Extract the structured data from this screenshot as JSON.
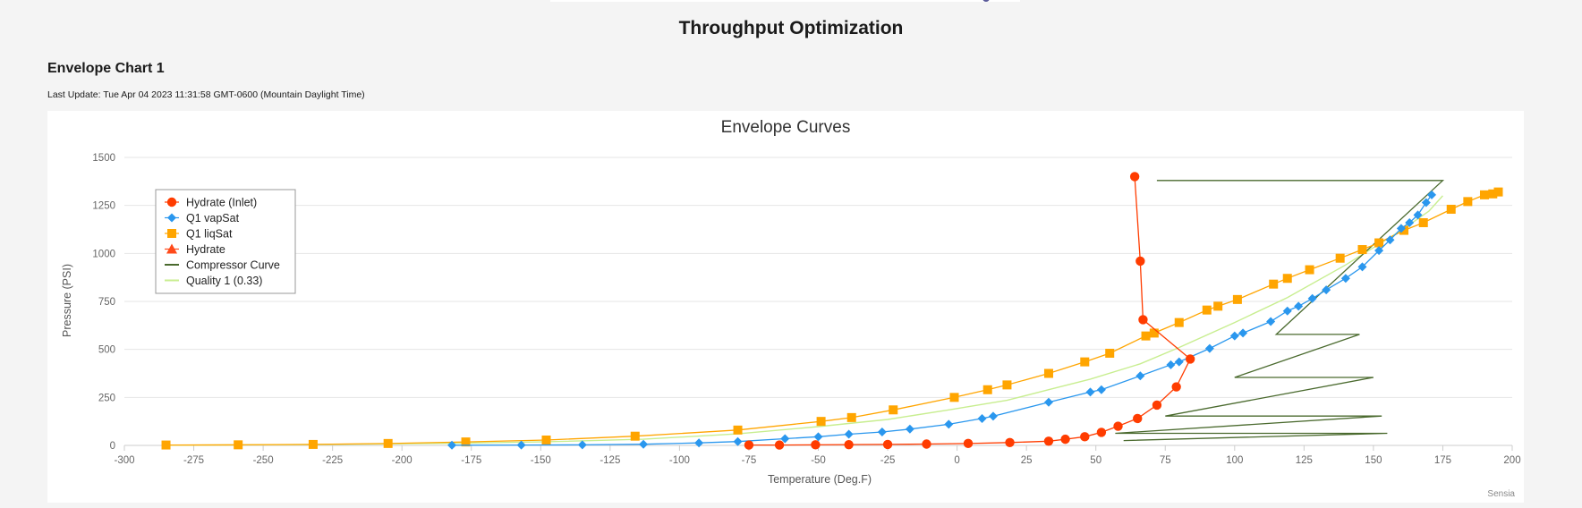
{
  "page": {
    "title": "Throughput Optimization",
    "section_title": "Envelope Chart 1",
    "last_update": "Last Update: Tue Apr 04 2023 11:31:58 GMT-0600 (Mountain Daylight Time)"
  },
  "chart_data": {
    "type": "line",
    "title": "Envelope Curves",
    "xlabel": "Temperature (Deg.F)",
    "ylabel": "Pressure (PSI)",
    "xlim": [
      -300,
      200
    ],
    "ylim": [
      0,
      1500
    ],
    "xticks": [
      -300,
      -275,
      -250,
      -225,
      -200,
      -175,
      -150,
      -125,
      -100,
      -75,
      -50,
      -25,
      0,
      25,
      50,
      75,
      100,
      125,
      150,
      175,
      200
    ],
    "yticks": [
      0,
      250,
      500,
      750,
      1000,
      1250,
      1500
    ],
    "grid": true,
    "legend_position": "top-left",
    "credits": "Sensia",
    "series": [
      {
        "name": "Hydrate (Inlet)",
        "color": "#ff3c00",
        "marker": "circle",
        "line": true,
        "points": [
          [
            64,
            1400
          ],
          [
            66,
            960
          ],
          [
            67,
            655
          ],
          [
            84,
            450
          ],
          [
            79,
            305
          ],
          [
            72,
            210
          ],
          [
            65,
            140
          ],
          [
            58,
            100
          ],
          [
            52,
            68
          ],
          [
            46,
            45
          ],
          [
            39,
            32
          ],
          [
            33,
            22
          ],
          [
            19,
            15
          ],
          [
            4,
            10
          ],
          [
            -11,
            7
          ],
          [
            -25,
            5
          ],
          [
            -39,
            4
          ],
          [
            -51,
            3
          ],
          [
            -64,
            2
          ],
          [
            -75,
            2
          ]
        ]
      },
      {
        "name": "Q1 vapSat",
        "color": "#2a97ee",
        "marker": "diamond",
        "line": true,
        "points": [
          [
            -182,
            1
          ],
          [
            -157,
            2
          ],
          [
            -135,
            3
          ],
          [
            -113,
            6
          ],
          [
            -93,
            13
          ],
          [
            -79,
            20
          ],
          [
            -62,
            35
          ],
          [
            -50,
            45
          ],
          [
            -39,
            58
          ],
          [
            -27,
            70
          ],
          [
            -17,
            85
          ],
          [
            -3,
            110
          ],
          [
            9,
            140
          ],
          [
            13,
            152
          ],
          [
            33,
            225
          ],
          [
            48,
            278
          ],
          [
            52,
            290
          ],
          [
            66,
            362
          ],
          [
            77,
            420
          ],
          [
            80,
            435
          ],
          [
            91,
            505
          ],
          [
            100,
            570
          ],
          [
            103,
            585
          ],
          [
            113,
            645
          ],
          [
            119,
            700
          ],
          [
            123,
            725
          ],
          [
            128,
            765
          ],
          [
            133,
            810
          ],
          [
            140,
            870
          ],
          [
            146,
            930
          ],
          [
            152,
            1015
          ],
          [
            156,
            1070
          ],
          [
            160,
            1130
          ],
          [
            163,
            1160
          ],
          [
            166,
            1200
          ],
          [
            169,
            1265
          ],
          [
            171,
            1305
          ]
        ]
      },
      {
        "name": "Q1 liqSat",
        "color": "#ffa500",
        "marker": "square",
        "line": true,
        "points": [
          [
            -285,
            2
          ],
          [
            -259,
            3
          ],
          [
            -232,
            5
          ],
          [
            -205,
            10
          ],
          [
            -177,
            18
          ],
          [
            -148,
            28
          ],
          [
            -116,
            48
          ],
          [
            -79,
            80
          ],
          [
            -49,
            125
          ],
          [
            -38,
            145
          ],
          [
            -23,
            185
          ],
          [
            -1,
            250
          ],
          [
            11,
            290
          ],
          [
            18,
            315
          ],
          [
            33,
            375
          ],
          [
            46,
            435
          ],
          [
            55,
            480
          ],
          [
            68,
            570
          ],
          [
            71,
            585
          ],
          [
            80,
            640
          ],
          [
            90,
            705
          ],
          [
            94,
            725
          ],
          [
            101,
            760
          ],
          [
            114,
            840
          ],
          [
            119,
            870
          ],
          [
            127,
            915
          ],
          [
            138,
            975
          ],
          [
            146,
            1020
          ],
          [
            152,
            1055
          ],
          [
            161,
            1120
          ],
          [
            168,
            1160
          ],
          [
            178,
            1230
          ],
          [
            184,
            1270
          ],
          [
            190,
            1305
          ],
          [
            193,
            1310
          ],
          [
            195,
            1320
          ]
        ]
      },
      {
        "name": "Hydrate",
        "color": "#ff4a1a",
        "marker": "triangle",
        "line": true,
        "points": []
      },
      {
        "name": "Compressor Curve",
        "color": "#4a6a2e",
        "marker": "none",
        "line": true,
        "points": [
          [
            72,
            1380
          ],
          [
            175,
            1380
          ],
          [
            115,
            578
          ],
          [
            145,
            578
          ],
          [
            100,
            354
          ],
          [
            150,
            354
          ],
          [
            75,
            153
          ],
          [
            153,
            153
          ],
          [
            57,
            63
          ],
          [
            155,
            63
          ],
          [
            60,
            25
          ]
        ]
      },
      {
        "name": "Quality 1 (0.33)",
        "color": "#c8ee90",
        "marker": "none",
        "line": true,
        "points": [
          [
            -285,
            1
          ],
          [
            -232,
            4
          ],
          [
            -177,
            12
          ],
          [
            -150,
            18
          ],
          [
            -113,
            32
          ],
          [
            -79,
            60
          ],
          [
            -50,
            98
          ],
          [
            -25,
            135
          ],
          [
            -3,
            185
          ],
          [
            18,
            235
          ],
          [
            33,
            290
          ],
          [
            48,
            345
          ],
          [
            66,
            425
          ],
          [
            80,
            510
          ],
          [
            100,
            640
          ],
          [
            119,
            770
          ],
          [
            140,
            940
          ],
          [
            160,
            1120
          ],
          [
            170,
            1220
          ],
          [
            175,
            1300
          ]
        ]
      }
    ]
  }
}
